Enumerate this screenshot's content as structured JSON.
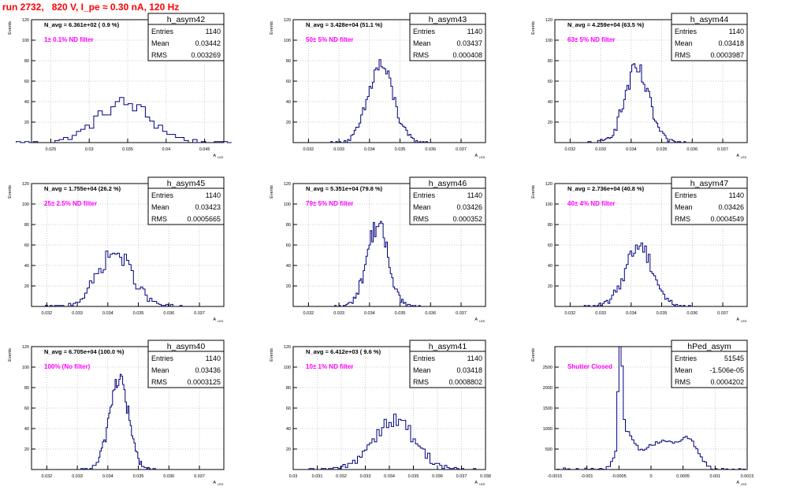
{
  "page": {
    "title": "run 2732,   820 V, I_pe ≈ 0.30 nA, 120 Hz"
  },
  "axis_text": {
    "ylabel": "Events",
    "xlabel_main": "A",
    "xlabel_sub": "LED"
  },
  "colors": {
    "histogram": "#000080",
    "annotation": "#ff00ff",
    "grid": "#bbbbbb",
    "frame": "#000000"
  },
  "panels": [
    {
      "name": "h_asym42",
      "nav_label": "N_avg = 6.361e+02 ( 0.9 %)",
      "filter_label": "1± 0.1% ND filter",
      "stats": {
        "entries": "1140",
        "mean": "0.03442",
        "rms": "0.003269"
      },
      "xlim": [
        0.0225,
        0.0475
      ],
      "xticks": [
        {
          "v": 0.025,
          "label": "0.025"
        },
        {
          "v": 0.03,
          "label": "0.03"
        },
        {
          "v": 0.035,
          "label": "0.035"
        },
        {
          "v": 0.04,
          "label": "0.04"
        },
        {
          "v": 0.045,
          "label": "0.045"
        }
      ],
      "ylim": [
        0,
        120
      ],
      "yticks": [
        20,
        40,
        60,
        80,
        100,
        120
      ],
      "shape": {
        "mu": 0.0345,
        "sigma": 0.0035,
        "peak": 38,
        "bins": 50
      }
    },
    {
      "name": "h_asym43",
      "nav_label": "N_avg = 3.428e+04 (51.1 %)",
      "filter_label": "50± 5% ND filter",
      "stats": {
        "entries": "1140",
        "mean": "0.03437",
        "rms": "0.000408"
      },
      "xlim": [
        0.0315,
        0.0378
      ],
      "xticks": [
        {
          "v": 0.032,
          "label": "0.032"
        },
        {
          "v": 0.033,
          "label": "0.033"
        },
        {
          "v": 0.034,
          "label": "0.034"
        },
        {
          "v": 0.035,
          "label": "0.035"
        },
        {
          "v": 0.036,
          "label": "0.036"
        },
        {
          "v": 0.037,
          "label": "0.037"
        }
      ],
      "ylim": [
        0,
        120
      ],
      "yticks": [
        20,
        40,
        60,
        80,
        100,
        120
      ],
      "shape": {
        "mu": 0.03437,
        "sigma": 0.00041,
        "peak": 75,
        "bins": 60
      }
    },
    {
      "name": "h_asym44",
      "nav_label": "N_avg = 4.259e+04 (63.5 %)",
      "filter_label": "63± 5% ND filter",
      "stats": {
        "entries": "1140",
        "mean": "0.03418",
        "rms": "0.0003987"
      },
      "xlim": [
        0.0315,
        0.0378
      ],
      "xticks": [
        {
          "v": 0.032,
          "label": "0.032"
        },
        {
          "v": 0.033,
          "label": "0.033"
        },
        {
          "v": 0.034,
          "label": "0.034"
        },
        {
          "v": 0.035,
          "label": "0.035"
        },
        {
          "v": 0.036,
          "label": "0.036"
        },
        {
          "v": 0.037,
          "label": "0.037"
        }
      ],
      "ylim": [
        0,
        120
      ],
      "yticks": [
        20,
        40,
        60,
        80,
        100,
        120
      ],
      "shape": {
        "mu": 0.03418,
        "sigma": 0.0004,
        "peak": 70,
        "bins": 60
      }
    },
    {
      "name": "h_asym45",
      "nav_label": "N_avg = 1.755e+04 (26.2 %)",
      "filter_label": "25± 2.5% ND filter",
      "stats": {
        "entries": "1140",
        "mean": "0.03423",
        "rms": "0.0005665"
      },
      "xlim": [
        0.0315,
        0.0378
      ],
      "xticks": [
        {
          "v": 0.032,
          "label": "0.032"
        },
        {
          "v": 0.033,
          "label": "0.033"
        },
        {
          "v": 0.034,
          "label": "0.034"
        },
        {
          "v": 0.035,
          "label": "0.035"
        },
        {
          "v": 0.036,
          "label": "0.036"
        },
        {
          "v": 0.037,
          "label": "0.037"
        }
      ],
      "ylim": [
        0,
        120
      ],
      "yticks": [
        20,
        40,
        60,
        80,
        100,
        120
      ],
      "shape": {
        "mu": 0.03423,
        "sigma": 0.00057,
        "peak": 52,
        "bins": 60
      }
    },
    {
      "name": "h_asym46",
      "nav_label": "N_avg = 5.351e+04 (79.8 %)",
      "filter_label": "79± 5% ND filter",
      "stats": {
        "entries": "1140",
        "mean": "0.03426",
        "rms": "0.000352"
      },
      "xlim": [
        0.0315,
        0.0378
      ],
      "xticks": [
        {
          "v": 0.032,
          "label": "0.032"
        },
        {
          "v": 0.033,
          "label": "0.033"
        },
        {
          "v": 0.034,
          "label": "0.034"
        },
        {
          "v": 0.035,
          "label": "0.035"
        },
        {
          "v": 0.036,
          "label": "0.036"
        },
        {
          "v": 0.037,
          "label": "0.037"
        }
      ],
      "ylim": [
        0,
        120
      ],
      "yticks": [
        20,
        40,
        60,
        80,
        100,
        120
      ],
      "shape": {
        "mu": 0.03426,
        "sigma": 0.00035,
        "peak": 80,
        "bins": 60
      }
    },
    {
      "name": "h_asym47",
      "nav_label": "N_avg = 2.736e+04 (40.8 %)",
      "filter_label": "40± 4% ND filter",
      "stats": {
        "entries": "1140",
        "mean": "0.03426",
        "rms": "0.0004549"
      },
      "xlim": [
        0.0315,
        0.0378
      ],
      "xticks": [
        {
          "v": 0.032,
          "label": "0.032"
        },
        {
          "v": 0.033,
          "label": "0.033"
        },
        {
          "v": 0.034,
          "label": "0.034"
        },
        {
          "v": 0.035,
          "label": "0.035"
        },
        {
          "v": 0.036,
          "label": "0.036"
        },
        {
          "v": 0.037,
          "label": "0.037"
        }
      ],
      "ylim": [
        0,
        120
      ],
      "yticks": [
        20,
        40,
        60,
        80,
        100,
        120
      ],
      "shape": {
        "mu": 0.03426,
        "sigma": 0.00045,
        "peak": 60,
        "bins": 60
      }
    },
    {
      "name": "h_asym40",
      "nav_label": "N_avg = 6.705e+04 (100.0 %)",
      "filter_label": "100% (No filter)",
      "stats": {
        "entries": "1140",
        "mean": "0.03436",
        "rms": "0.0003125"
      },
      "xlim": [
        0.0315,
        0.0378
      ],
      "xticks": [
        {
          "v": 0.032,
          "label": "0.032"
        },
        {
          "v": 0.033,
          "label": "0.033"
        },
        {
          "v": 0.034,
          "label": "0.034"
        },
        {
          "v": 0.035,
          "label": "0.035"
        },
        {
          "v": 0.036,
          "label": "0.036"
        },
        {
          "v": 0.037,
          "label": "0.037"
        }
      ],
      "ylim": [
        0,
        120
      ],
      "yticks": [
        20,
        40,
        60,
        80,
        100,
        120
      ],
      "shape": {
        "mu": 0.03436,
        "sigma": 0.00031,
        "peak": 90,
        "bins": 60
      }
    },
    {
      "name": "h_asym41",
      "nav_label": "N_avg = 6.412e+03 ( 9.6 %)",
      "filter_label": "10± 1% ND filter",
      "stats": {
        "entries": "1140",
        "mean": "0.03418",
        "rms": "0.0008802"
      },
      "xlim": [
        0.03,
        0.038
      ],
      "xticks": [
        {
          "v": 0.03,
          "label": "0.03"
        },
        {
          "v": 0.031,
          "label": "0.031"
        },
        {
          "v": 0.032,
          "label": "0.032"
        },
        {
          "v": 0.033,
          "label": "0.033"
        },
        {
          "v": 0.034,
          "label": "0.034"
        },
        {
          "v": 0.035,
          "label": "0.035"
        },
        {
          "v": 0.036,
          "label": "0.036"
        },
        {
          "v": 0.037,
          "label": "0.037"
        },
        {
          "v": 0.038,
          "label": "0.038"
        }
      ],
      "ylim": [
        0,
        120
      ],
      "yticks": [
        20,
        40,
        60,
        80,
        100,
        120
      ],
      "shape": {
        "mu": 0.03418,
        "sigma": 0.00088,
        "peak": 48,
        "bins": 70
      }
    },
    {
      "name": "hPed_asym",
      "nav_label": "",
      "filter_label": "Shutter Closed",
      "stats": {
        "entries": "51545",
        "mean": "-1.506e-05",
        "rms": "0.0004202"
      },
      "xlim": [
        -0.0015,
        0.0015
      ],
      "xticks": [
        {
          "v": -0.0015,
          "label": "-0.0015"
        },
        {
          "v": -0.001,
          "label": "-0.001"
        },
        {
          "v": -0.0005,
          "label": "-0.0005"
        },
        {
          "v": 0,
          "label": "0"
        },
        {
          "v": 0.0005,
          "label": "0.0005"
        },
        {
          "v": 0.001,
          "label": "0.001"
        },
        {
          "v": 0.0015,
          "label": "0.0015"
        }
      ],
      "ylim": [
        0,
        3000
      ],
      "yticks": [
        500,
        1000,
        1500,
        2000,
        2500
      ],
      "pedestal": true
    }
  ],
  "chart_data": {
    "type": "histogram-grid",
    "title": "run 2732,   820 V, I_pe ≈ 0.30 nA, 120 Hz",
    "ylabel": "Events",
    "xlabel": "A LED",
    "grid": true,
    "series": [
      {
        "name": "h_asym42",
        "entries": 1140,
        "mean": 0.03442,
        "rms": 0.003269
      },
      {
        "name": "h_asym43",
        "entries": 1140,
        "mean": 0.03437,
        "rms": 0.000408
      },
      {
        "name": "h_asym44",
        "entries": 1140,
        "mean": 0.03418,
        "rms": 0.0003987
      },
      {
        "name": "h_asym45",
        "entries": 1140,
        "mean": 0.03423,
        "rms": 0.0005665
      },
      {
        "name": "h_asym46",
        "entries": 1140,
        "mean": 0.03426,
        "rms": 0.000352
      },
      {
        "name": "h_asym47",
        "entries": 1140,
        "mean": 0.03426,
        "rms": 0.0004549
      },
      {
        "name": "h_asym40",
        "entries": 1140,
        "mean": 0.03436,
        "rms": 0.0003125
      },
      {
        "name": "h_asym41",
        "entries": 1140,
        "mean": 0.03418,
        "rms": 0.0008802
      },
      {
        "name": "hPed_asym",
        "entries": 51545,
        "mean": -1.506e-05,
        "rms": 0.0004202
      }
    ]
  }
}
